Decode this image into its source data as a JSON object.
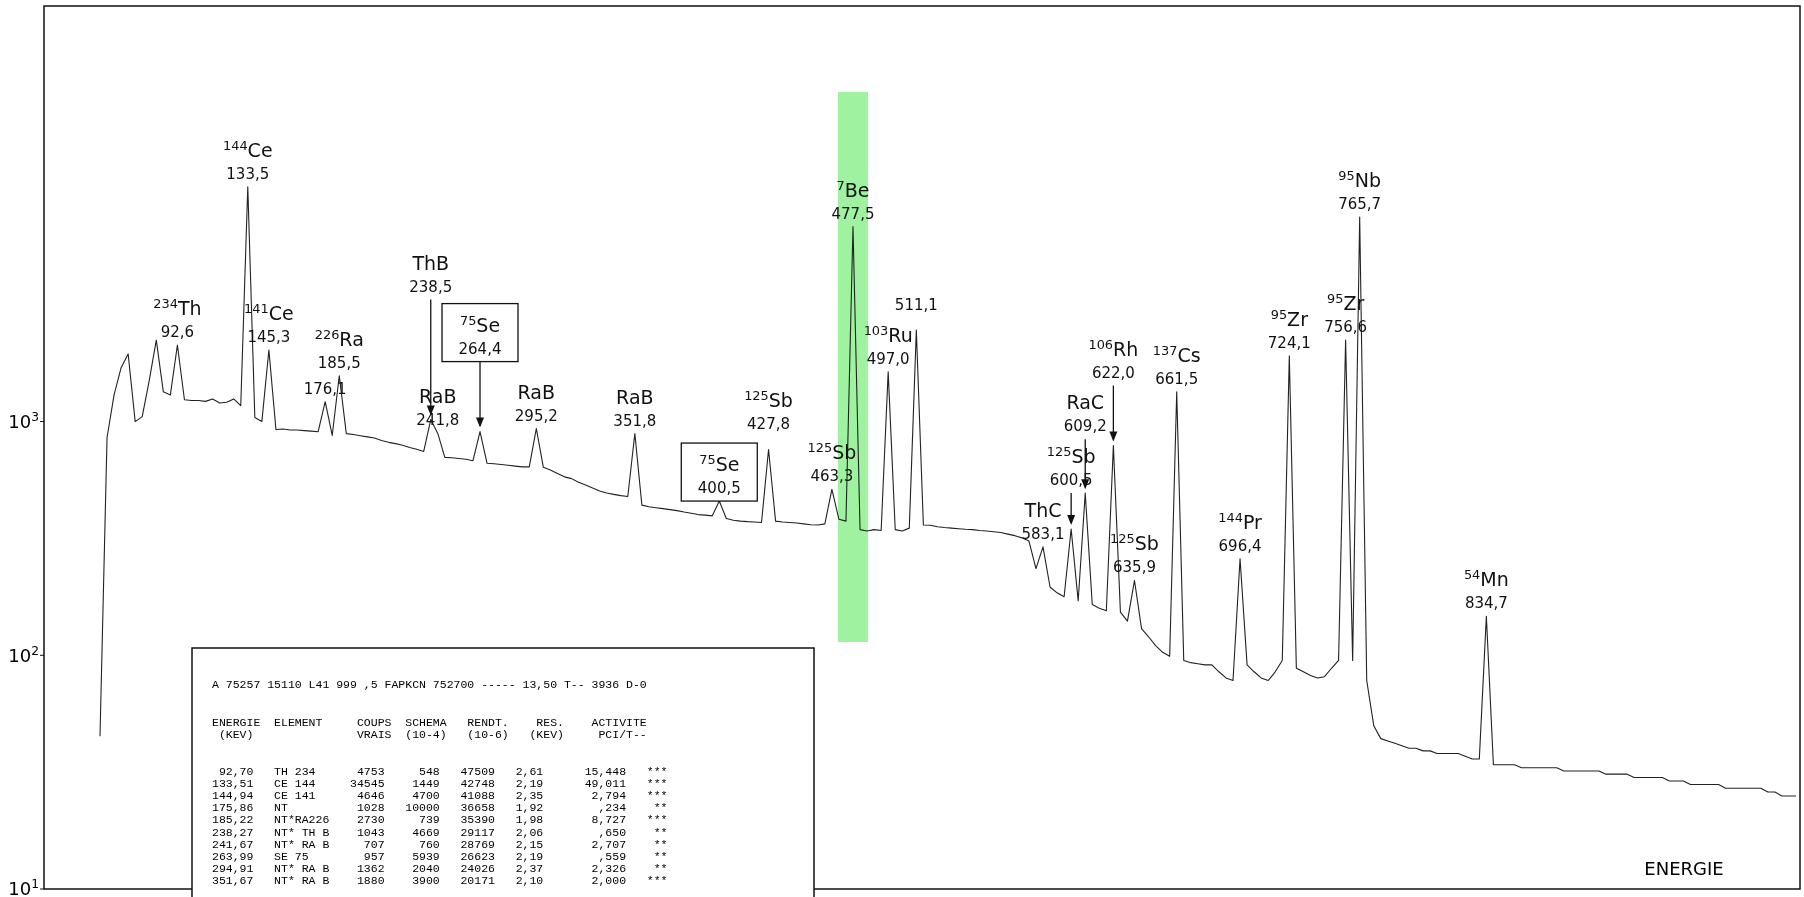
{
  "chart_data": {
    "type": "line",
    "xlabel": "ENERGIE",
    "ylim": [
      10,
      60000
    ],
    "log": "y",
    "grid": false,
    "line_style": "solid",
    "yticks": [
      {
        "value": 10,
        "label": "10$^{1}$"
      },
      {
        "value": 100,
        "label": "10$^{2}$"
      },
      {
        "value": 1000,
        "label": "10$^{3}$"
      }
    ],
    "categories": [
      null,
      null,
      null,
      null,
      null,
      null,
      null,
      null,
      null,
      null,
      null,
      null,
      null,
      null,
      null,
      null,
      null,
      null,
      null,
      null,
      null,
      null,
      null,
      null,
      null,
      null,
      null,
      null,
      null,
      null,
      null,
      null,
      null,
      null,
      null,
      null,
      null,
      null,
      null,
      null,
      null,
      null,
      null,
      null,
      null,
      null,
      null,
      null,
      null,
      null,
      null,
      null,
      null,
      null,
      null,
      null,
      null,
      null,
      null,
      null,
      null,
      null,
      null,
      null,
      null,
      null,
      null,
      null,
      null,
      null,
      null,
      null,
      null,
      null,
      null,
      null,
      null,
      null,
      null,
      null,
      null,
      null,
      null,
      null,
      null,
      null,
      null,
      null,
      null,
      null,
      null,
      null,
      null,
      null,
      null,
      null,
      null,
      null,
      null,
      null,
      null,
      null,
      null,
      null,
      null,
      null,
      null,
      null,
      null,
      null,
      null,
      null,
      null,
      null,
      null,
      null,
      null,
      null,
      null,
      null,
      null,
      null,
      null,
      null,
      null,
      null,
      null,
      null,
      null,
      null,
      null,
      null,
      null,
      null,
      null,
      null,
      null,
      null,
      null,
      null,
      null,
      null,
      null,
      null,
      null,
      null,
      null,
      null,
      null,
      null,
      null,
      null,
      null,
      null,
      null,
      null,
      null,
      null,
      null,
      null,
      null,
      null,
      null,
      null,
      null,
      null,
      null,
      null,
      null,
      null,
      null,
      null,
      null,
      null,
      null,
      null,
      null,
      null,
      null,
      null,
      null,
      null,
      null,
      null,
      null,
      null,
      null,
      null,
      null,
      null,
      null,
      null,
      null,
      null,
      null,
      null,
      null,
      null,
      null,
      null,
      null,
      null,
      null,
      null,
      null,
      null,
      null,
      null,
      null,
      null,
      null,
      null,
      null,
      null,
      null,
      null,
      null,
      null,
      null,
      null,
      null,
      null,
      null,
      null,
      null,
      null,
      null,
      null,
      null,
      null,
      null,
      null,
      null,
      null,
      null,
      null,
      null,
      null,
      null,
      null,
      null,
      null
    ],
    "series": [
      {
        "color": "#222222",
        "values": [
          45,
          855,
          1300,
          1700,
          1947,
          1000,
          1050,
          1500,
          2230,
          1340,
          1300,
          2126,
          1240,
          1230,
          1230,
          1220,
          1250,
          1200,
          1210,
          1250,
          1170,
          10100,
          1040,
          1000,
          2025,
          925,
          930,
          920,
          920,
          915,
          910,
          905,
          1216,
          872,
          1570,
          888,
          880,
          870,
          860,
          850,
          830,
          815,
          805,
          792,
          775,
          762,
          745,
          1020,
          890,
          703,
          700,
          695,
          690,
          680,
          906,
          663,
          660,
          655,
          650,
          645,
          640,
          640,
          934,
          637,
          620,
          600,
          580,
          570,
          550,
          535,
          520,
          505,
          495,
          488,
          482,
          478,
          889,
          439,
          432,
          428,
          424,
          420,
          416,
          410,
          405,
          400,
          398,
          395,
          457,
          385,
          378,
          375,
          373,
          372,
          370,
          760,
          375,
          372,
          370,
          368,
          365,
          362,
          361,
          365,
          513,
          382,
          375,
          6830,
          345,
          340,
          345,
          342,
          1632,
          345,
          340,
          350,
          2463,
          361,
          360,
          355,
          352,
          350,
          348,
          346,
          345,
          342,
          340,
          338,
          335,
          330,
          325,
          318,
          308,
          235,
          291,
          196,
          185,
          178,
          347,
          171,
          494,
          165,
          159,
          155,
          790,
          153,
          140,
          209,
          130,
          120,
          110,
          103,
          99,
          1342,
          95,
          93,
          92,
          91,
          91,
          85,
          80,
          78,
          259,
          91,
          85,
          80,
          78,
          85,
          95,
          1910,
          88,
          85,
          82,
          80,
          81,
          88,
          95,
          2232,
          95,
          7500,
          78,
          50,
          44,
          43,
          42,
          41,
          40,
          40,
          39,
          39,
          38,
          38,
          38,
          38,
          37,
          36,
          36,
          147,
          34,
          34,
          34,
          34,
          33,
          33,
          33,
          33,
          33,
          33,
          32,
          32,
          32,
          32,
          32,
          32,
          31,
          31,
          31,
          31,
          30,
          30,
          30,
          30,
          30,
          29,
          29,
          29,
          28,
          28,
          28,
          28,
          28,
          27,
          27,
          27,
          27,
          27,
          27,
          26,
          26,
          25,
          25,
          25
        ]
      }
    ],
    "annotations": [
      {
        "text": "$^{234}$Th\n92,6",
        "y": 2126
      },
      {
        "text": "$^{144}$Ce\n133,5",
        "y": 10100
      },
      {
        "text": "$^{141}$Ce\n145,3",
        "y": 2025
      },
      {
        "text": "176,1",
        "y": 1216
      },
      {
        "text": "$^{226}$Ra\n185,5",
        "y": 1570
      },
      {
        "text": "ThB\n238,5",
        "y": 1020
      },
      {
        "text": "RaB\n241,8",
        "y": 890
      },
      {
        "text": "$^{75}$Se\n264,4",
        "y": 906
      },
      {
        "text": "RaB\n295,2",
        "y": 934
      },
      {
        "text": "RaB\n351,8",
        "y": 889
      },
      {
        "text": "$^{75}$Se\n400,5",
        "y": 457
      },
      {
        "text": "$^{125}$Sb\n427,8",
        "y": 760
      },
      {
        "text": "$^{125}$Sb\n463,3",
        "y": 513
      },
      {
        "text": "$^{7}$Be\n477,5",
        "y": 6830
      },
      {
        "text": "$^{103}$Ru\n497,0",
        "y": 1632
      },
      {
        "text": "511,1",
        "y": 2463
      },
      {
        "text": "ThC\n583,1",
        "y": 291
      },
      {
        "text": "$^{125}$Sb\n600,5",
        "y": 347
      },
      {
        "text": "RaC\n609,2",
        "y": 494
      },
      {
        "text": "$^{106}$Rh\n622,0",
        "y": 790
      },
      {
        "text": "$^{125}$Sb\n635,9",
        "y": 209
      },
      {
        "text": "$^{137}$Cs\n661,5",
        "y": 1342
      },
      {
        "text": "$^{144}$Pr\n696,4",
        "y": 259
      },
      {
        "text": "$^{95}$Zr\n724,1",
        "y": 1910
      },
      {
        "text": "$^{95}$Zr\n756,6",
        "y": 2232
      },
      {
        "text": "$^{95}$Nb\n765,7",
        "y": 7500
      },
      {
        "text": "$^{54}$Mn\n834,7",
        "y": 147
      },
      "A 75257 15110 L41 999 ,5 FAPKCN 752700 ----- 13,50 T-- 3936 D-0",
      "ENERGIE  ELEMENT     COUPS  SCHEMA   RENDT.    RES.    ACTIVITE",
      " (KEV)               VRAIS  (10-4)   (10-6)   (KEV)     PCI/T--",
      " 92,70   TH 234      4753     548   47509   2,61      15,448   ***",
      "133,51   CE 144     34545    1449   42748   2,19      49,011   ***",
      "144,94   CE 141      4646    4700   41088   2,35       2,794   ***",
      "175,86   NT          1028   10000   36658   1,92        ,234    **",
      "185,22   NT*RA226    2730     739   35390   1,98       8,727   ***",
      "238,27   NT* TH B    1043    4669   29117   2,06        ,650    **",
      "241,67   NT* RA B     707     760   28769   2,15       2,707    **",
      "263,99   SE 75        957    5939   26623   2,19        ,559    **",
      "294,91   NT* RA B    1362    2040   24026   2,37       2,326    **",
      "351,67   NT* RA B    1880    3900   20171   2,10       2,000   ***"
    ]
  }
}
